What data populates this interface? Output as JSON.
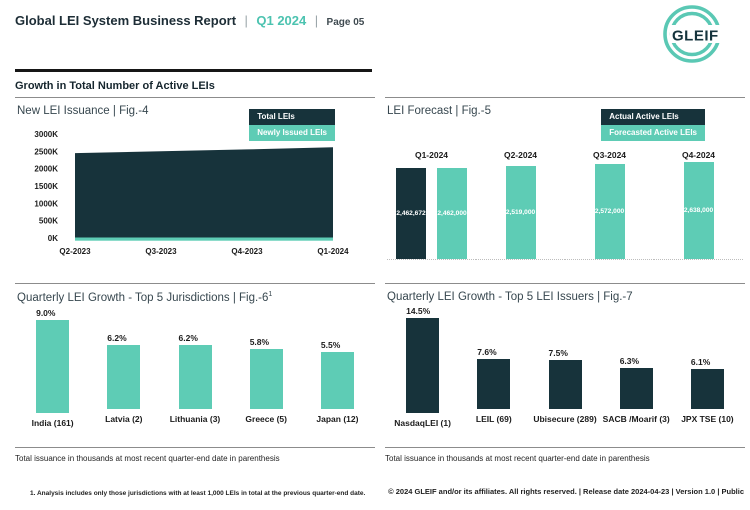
{
  "header": {
    "title": "Global LEI System Business Report",
    "separator": "|",
    "period": "Q1 2024",
    "page": "Page 05",
    "logo_text": "GLEIF"
  },
  "section_title": "Growth in Total Number of Active LEIs",
  "colors": {
    "dark": "#17333B",
    "teal": "#5ECCB5",
    "header_accent": "#4CC3B0",
    "rule_dark": "#161616",
    "rule_gray": "#8C8C8C"
  },
  "chart_data": [
    {
      "id": "fig4",
      "type": "area",
      "title": "New LEI Issuance | Fig.-4",
      "legend": [
        {
          "label": "Total LEIs",
          "color": "#17333B"
        },
        {
          "label": "Newly Issued LEIs",
          "color": "#5ECCB5"
        }
      ],
      "x": [
        "Q2-2023",
        "Q3-2023",
        "Q4-2023",
        "Q1-2024"
      ],
      "yticks": [
        "3000K",
        "2500K",
        "2000K",
        "1500K",
        "1000K",
        "500K",
        "0K"
      ],
      "ylim": [
        0,
        3000000
      ],
      "series": [
        {
          "name": "Total LEIs",
          "values": [
            2450000,
            2500000,
            2555000,
            2615000
          ],
          "color": "#17333B"
        },
        {
          "name": "Newly Issued LEIs",
          "values": [
            30000,
            30000,
            30000,
            30000
          ],
          "color": "#5ECCB5"
        }
      ]
    },
    {
      "id": "fig5",
      "type": "bar",
      "title": "LEI Forecast | Fig.-5",
      "legend": [
        {
          "label": "Actual Active LEIs",
          "color": "#17333B"
        },
        {
          "label": "Forecasted Active LEIs",
          "color": "#5ECCB5"
        }
      ],
      "groups": [
        {
          "label": "Q1-2024",
          "bars": [
            {
              "series": "actual",
              "value": 2462672,
              "label": "2,462,672"
            },
            {
              "series": "forecast",
              "value": 2462000,
              "label": "2,462,000"
            }
          ]
        },
        {
          "label": "Q2-2024",
          "bars": [
            {
              "series": "forecast",
              "value": 2519000,
              "label": "2,519,000"
            }
          ]
        },
        {
          "label": "Q3-2024",
          "bars": [
            {
              "series": "forecast",
              "value": 2572000,
              "label": "2,572,000"
            }
          ]
        },
        {
          "label": "Q4-2024",
          "bars": [
            {
              "series": "forecast",
              "value": 2638000,
              "label": "2,638,000"
            }
          ]
        }
      ]
    },
    {
      "id": "fig6",
      "type": "bar",
      "title_main": "Quarterly LEI Growth - Top 5 Jurisdictions | Fig.-6",
      "title_sup": "1",
      "categories": [
        "India (161)",
        "Latvia (2)",
        "Lithuania (3)",
        "Greece (5)",
        "Japan (12)"
      ],
      "values": [
        9.0,
        6.2,
        6.2,
        5.8,
        5.5
      ],
      "labels": [
        "9.0%",
        "6.2%",
        "6.2%",
        "5.8%",
        "5.5%"
      ],
      "bar_color": "#5ECCB5",
      "footnote": "Total issuance in thousands at most recent quarter-end date in parenthesis"
    },
    {
      "id": "fig7",
      "type": "bar",
      "title_main": "Quarterly LEI Growth - Top 5 LEI Issuers | Fig.-7",
      "categories": [
        "NasdaqLEI (1)",
        "LEIL (69)",
        "Ubisecure (289)",
        "SACB /Moarif (3)",
        "JPX TSE (10)"
      ],
      "values": [
        14.5,
        7.6,
        7.5,
        6.3,
        6.1
      ],
      "labels": [
        "14.5%",
        "7.6%",
        "7.5%",
        "6.3%",
        "6.1%"
      ],
      "bar_color": "#17333B",
      "footnote": "Total issuance in thousands at most recent quarter-end date in parenthesis"
    }
  ],
  "footer": {
    "footnote1": "1. Analysis includes only those jurisdictions with at least 1,000 LEIs in total at the previous quarter-end date.",
    "copyright": "© 2024 GLEIF and/or its affiliates. All rights reserved. | Release date 2024-04-23 | Version 1.0 | Public"
  }
}
